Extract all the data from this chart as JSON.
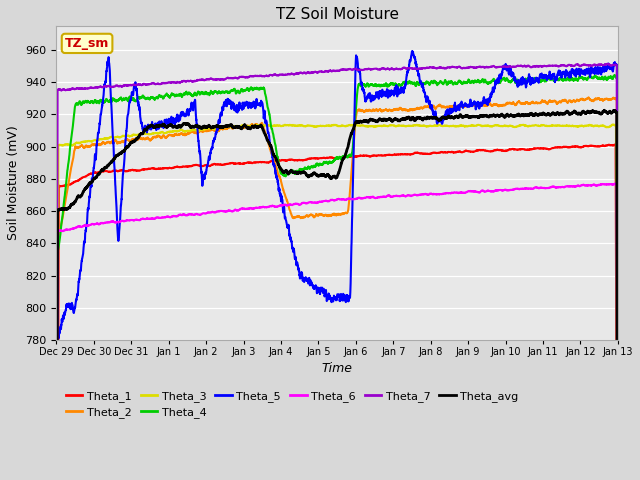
{
  "title": "TZ Soil Moisture",
  "xlabel": "Time",
  "ylabel": "Soil Moisture (mV)",
  "ylim": [
    780,
    975
  ],
  "yticks": [
    780,
    800,
    820,
    840,
    860,
    880,
    900,
    920,
    940,
    960
  ],
  "n_days": 15,
  "xtick_labels": [
    "Dec 29",
    "Dec 30",
    "Dec 31",
    "Jan 1",
    "Jan 2",
    "Jan 3",
    "Jan 4",
    "Jan 5",
    "Jan 6",
    "Jan 7",
    "Jan 8",
    "Jan 9",
    "Jan 10",
    "Jan 11",
    "Jan 12",
    "Jan 13"
  ],
  "legend_entries": [
    "Theta_1",
    "Theta_2",
    "Theta_3",
    "Theta_4",
    "Theta_5",
    "Theta_6",
    "Theta_7",
    "Theta_avg"
  ],
  "legend_colors": [
    "#ff0000",
    "#ff8800",
    "#dddd00",
    "#00cc00",
    "#0000ff",
    "#ff00ff",
    "#9900cc",
    "#000000"
  ],
  "fig_bg": "#d8d8d8",
  "plot_bg": "#e8e8e8",
  "grid_color": "#ffffff",
  "box_label": "TZ_sm",
  "box_bg": "#ffffcc",
  "box_border": "#ccaa00",
  "box_text_color": "#cc0000",
  "title_fontsize": 11,
  "axis_fontsize": 9,
  "tick_fontsize": 8,
  "legend_fontsize": 8
}
